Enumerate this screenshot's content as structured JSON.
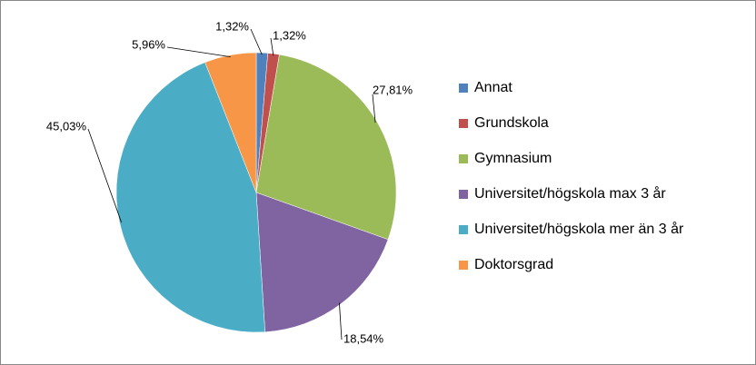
{
  "chart_data": {
    "type": "pie",
    "categories": [
      "Annat",
      "Grundskola",
      "Gymnasium",
      "Universitet/högskola max 3 år",
      "Universitet/högskola mer än 3 år",
      "Doktorsgrad"
    ],
    "values": [
      1.32,
      1.32,
      27.81,
      18.54,
      45.03,
      5.96
    ],
    "value_labels": [
      "1,32%",
      "1,32%",
      "27,81%",
      "18,54%",
      "45,03%",
      "5,96%"
    ],
    "colors": [
      "#4F81BD",
      "#C0504D",
      "#9BBB59",
      "#8064A2",
      "#4BACC6",
      "#F79646"
    ],
    "legend": "right"
  }
}
